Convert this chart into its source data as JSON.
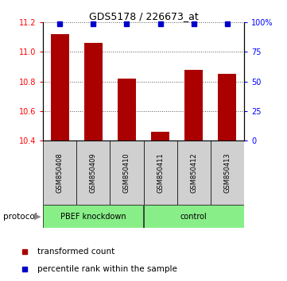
{
  "title": "GDS5178 / 226673_at",
  "categories": [
    "GSM850408",
    "GSM850409",
    "GSM850410",
    "GSM850411",
    "GSM850412",
    "GSM850413"
  ],
  "bar_values": [
    11.12,
    11.06,
    10.82,
    10.46,
    10.88,
    10.85
  ],
  "percentile_values": [
    99,
    99,
    99,
    99,
    99,
    99
  ],
  "bar_color": "#aa0000",
  "percentile_color": "#0000cc",
  "ylim_left": [
    10.4,
    11.2
  ],
  "ylim_right": [
    0,
    100
  ],
  "yticks_left": [
    10.4,
    10.6,
    10.8,
    11.0,
    11.2
  ],
  "yticks_right": [
    0,
    25,
    50,
    75,
    100
  ],
  "ytick_labels_right": [
    "0",
    "25",
    "50",
    "75",
    "100%"
  ],
  "groups": [
    {
      "label": "PBEF knockdown",
      "start": 0,
      "end": 3
    },
    {
      "label": "control",
      "start": 3,
      "end": 6
    }
  ],
  "protocol_label": "protocol",
  "legend_items": [
    {
      "label": "transformed count",
      "color": "#aa0000",
      "marker": "s"
    },
    {
      "label": "percentile rank within the sample",
      "color": "#0000cc",
      "marker": "s"
    }
  ],
  "gray_color": "#d0d0d0",
  "green_color": "#88ee88",
  "bar_width": 0.55,
  "gridline_color": "#555555",
  "title_fontsize": 9,
  "tick_fontsize": 7,
  "label_fontsize": 7
}
